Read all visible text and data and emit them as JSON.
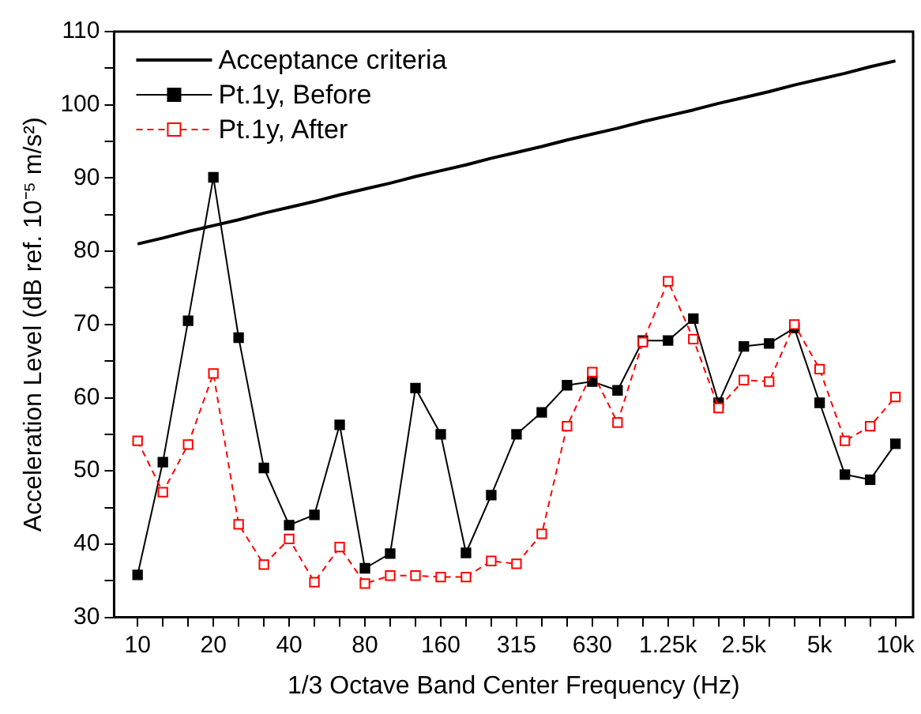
{
  "chart_data": {
    "type": "line",
    "xlabel": "1/3 Octave Band Center Frequency (Hz)",
    "ylabel": "Acceleration Level (dB ref. 10⁻⁵ m/s²)",
    "categories": [
      "10",
      null,
      null,
      "20",
      null,
      null,
      "40",
      null,
      null,
      "80",
      null,
      null,
      "160",
      null,
      null,
      "315",
      null,
      null,
      "630",
      null,
      null,
      "1.25k",
      null,
      null,
      "2.5k",
      null,
      null,
      "5k",
      null,
      null,
      "10k"
    ],
    "series": [
      {
        "name": "Acceptance criteria",
        "color": "#000000",
        "marker": "none",
        "line_style": "solid",
        "values": [
          81,
          81.8,
          82.7,
          83.5,
          84.3,
          85.2,
          86,
          86.8,
          87.7,
          88.5,
          89.3,
          90.2,
          91,
          91.8,
          92.7,
          93.5,
          94.3,
          95.2,
          96,
          96.8,
          97.7,
          98.5,
          99.3,
          100.2,
          101,
          101.8,
          102.7,
          103.5,
          104.3,
          105.2,
          106
        ]
      },
      {
        "name": "Pt.1y, Before",
        "color": "#000000",
        "marker": "square",
        "line_style": "solid",
        "values": [
          35.8,
          51.2,
          70.5,
          90.1,
          68.2,
          50.4,
          42.6,
          44.0,
          56.3,
          36.7,
          38.7,
          61.3,
          55.0,
          38.8,
          46.7,
          55.0,
          58.0,
          61.7,
          62.2,
          61.0,
          67.8,
          67.8,
          70.8,
          59.3,
          67.0,
          67.4,
          69.5,
          59.3,
          49.5,
          48.8,
          53.7
        ]
      },
      {
        "name": "Pt.1y, After",
        "color": "#ff0000",
        "marker": "square",
        "line_style": "dashed",
        "values": [
          54.1,
          47.1,
          53.6,
          63.3,
          42.7,
          37.2,
          40.7,
          34.8,
          39.6,
          34.6,
          35.7,
          35.7,
          35.5,
          35.5,
          37.7,
          37.3,
          41.4,
          56.1,
          63.5,
          56.6,
          67.6,
          75.9,
          68.0,
          58.6,
          62.4,
          62.2,
          70.0,
          63.9,
          54.1,
          56.1,
          60.1
        ]
      }
    ],
    "ylim": [
      30,
      110
    ],
    "yticks": [
      30,
      {
        "value": 35,
        "label": null
      },
      40,
      {
        "value": 45,
        "label": null
      },
      50,
      {
        "value": 55,
        "label": null
      },
      60,
      {
        "value": 65,
        "label": null
      },
      70,
      {
        "value": 75,
        "label": null
      },
      80,
      {
        "value": 85,
        "label": null
      },
      90,
      {
        "value": 95,
        "label": null
      },
      100,
      {
        "value": 105,
        "label": null
      },
      110
    ],
    "grid": false,
    "legend": "top left"
  }
}
